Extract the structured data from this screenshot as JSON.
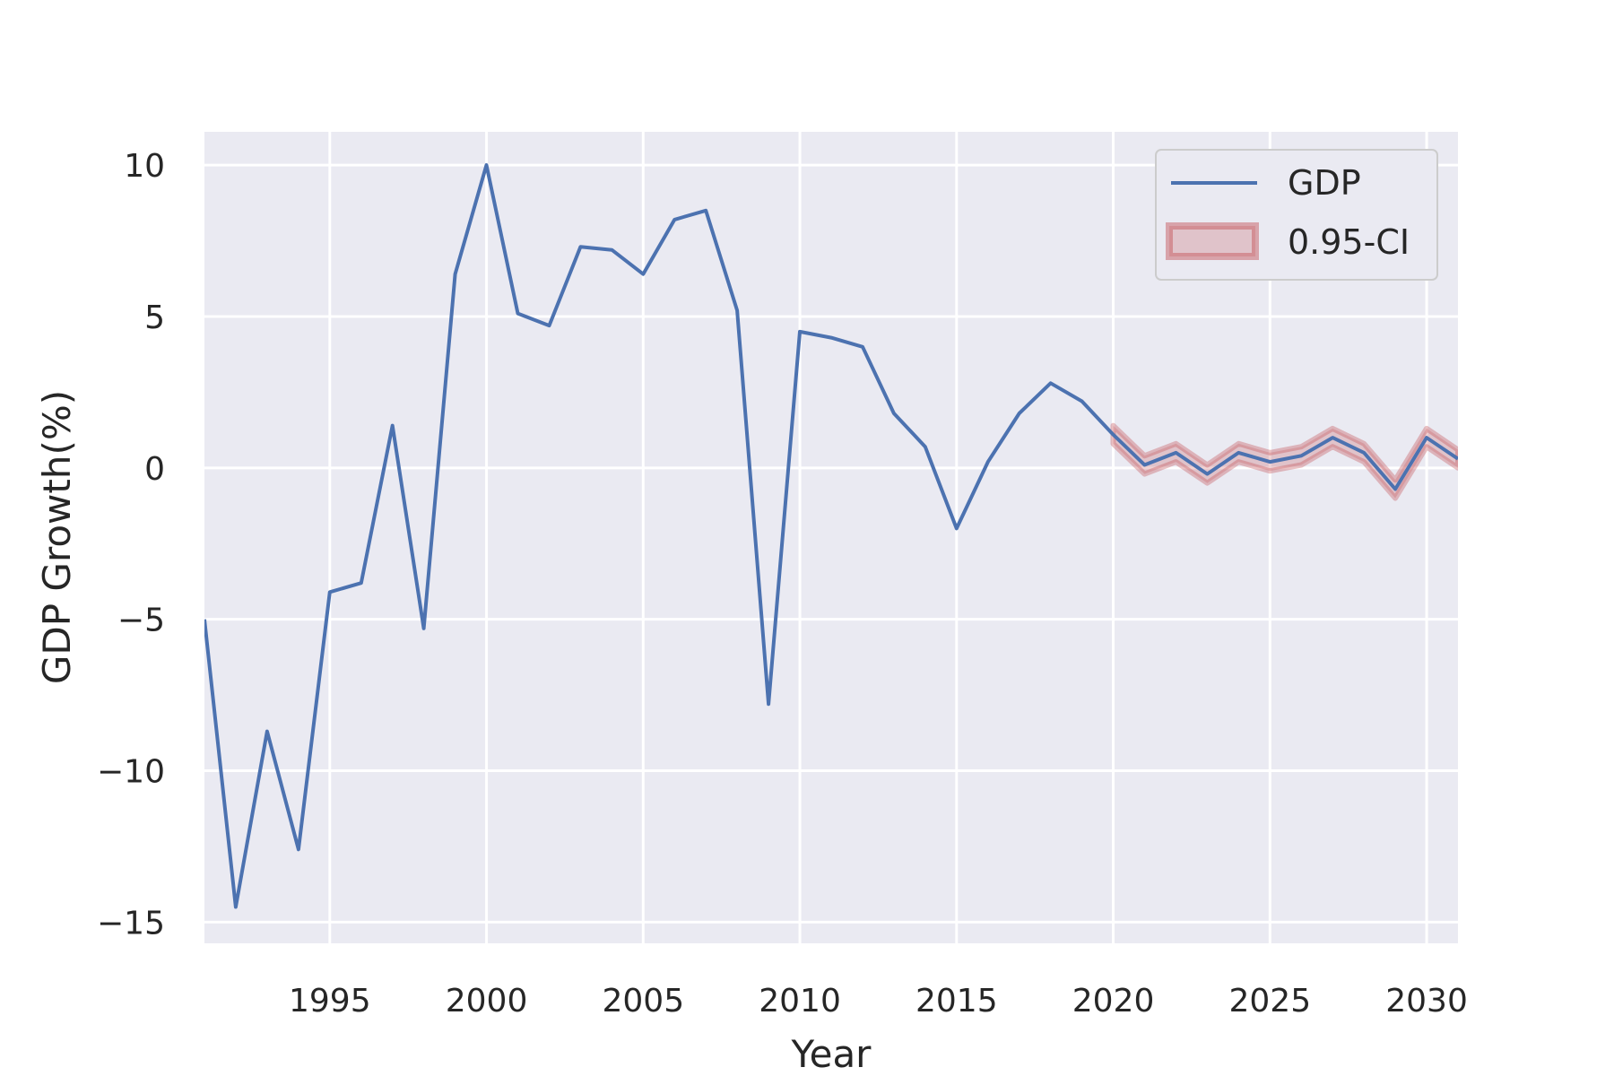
{
  "chart_data": {
    "type": "line",
    "title": "",
    "xlabel": "Year",
    "ylabel": "GDP Growth(%)",
    "xlim": [
      1991,
      2031
    ],
    "ylim": [
      -15.7,
      11.1
    ],
    "xticks": [
      1995,
      2000,
      2005,
      2010,
      2015,
      2020,
      2025,
      2030
    ],
    "yticks": [
      10,
      5,
      0,
      -5,
      -10,
      -15
    ],
    "ytick_labels": [
      "10",
      "5",
      "0",
      "−5",
      "−10",
      "−15"
    ],
    "grid": true,
    "legend_position": "top-right",
    "series": [
      {
        "name": "GDP",
        "color": "#4c72b0",
        "x": [
          1991,
          1992,
          1993,
          1994,
          1995,
          1996,
          1997,
          1998,
          1999,
          2000,
          2001,
          2002,
          2003,
          2004,
          2005,
          2006,
          2007,
          2008,
          2009,
          2010,
          2011,
          2012,
          2013,
          2014,
          2015,
          2016,
          2017,
          2018,
          2019,
          2020,
          2021,
          2022,
          2023,
          2024,
          2025,
          2026,
          2027,
          2028,
          2029,
          2030,
          2031
        ],
        "y": [
          -5.0,
          -14.5,
          -8.7,
          -12.6,
          -4.1,
          -3.8,
          1.4,
          -5.3,
          6.4,
          10.0,
          5.1,
          4.7,
          7.3,
          7.2,
          6.4,
          8.2,
          8.5,
          5.2,
          -7.8,
          4.5,
          4.3,
          4.0,
          1.8,
          0.7,
          -2.0,
          0.2,
          1.8,
          2.8,
          2.2,
          1.1,
          0.1,
          0.5,
          -0.2,
          0.5,
          0.2,
          0.4,
          1.0,
          0.5,
          -0.7,
          1.0,
          0.3
        ]
      },
      {
        "name": "0.95-CI",
        "color": "#c44e52",
        "x": [
          2020,
          2021,
          2022,
          2023,
          2024,
          2025,
          2026,
          2027,
          2028,
          2029,
          2030,
          2031
        ],
        "lower": [
          0.8,
          -0.2,
          0.2,
          -0.5,
          0.2,
          -0.1,
          0.1,
          0.7,
          0.2,
          -1.0,
          0.7,
          0.0
        ],
        "upper": [
          1.4,
          0.4,
          0.8,
          0.1,
          0.8,
          0.5,
          0.7,
          1.3,
          0.8,
          -0.4,
          1.3,
          0.6
        ]
      }
    ]
  }
}
